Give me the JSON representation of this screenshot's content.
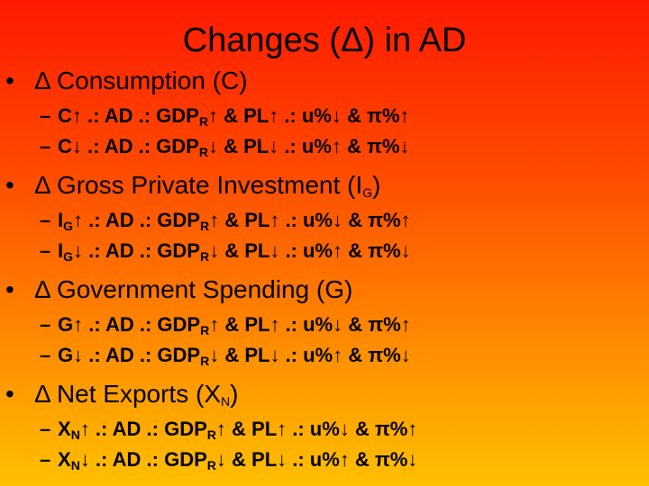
{
  "slide": {
    "title": "Changes (Δ) in AD",
    "bullet_marker": "•",
    "sub_marker": "–",
    "sections": [
      {
        "heading_main": "Δ Consumption (C)",
        "heading_sub": "",
        "heading_after": "",
        "lines": [
          {
            "a": "C",
            "a_sub": "",
            "b": "↑ .: AD  .: GDP",
            "r": "R",
            "c": "↑ & PL↑ .: u%↓ & π%↑"
          },
          {
            "a": "C",
            "a_sub": "",
            "b": "↓ .: AD  .: GDP",
            "r": "R",
            "c": "↓ & PL↓ .: u%↑ & π%↓"
          }
        ]
      },
      {
        "heading_main": "Δ Gross Private Investment (I",
        "heading_sub": "G",
        "heading_after": ")",
        "lines": [
          {
            "a": "I",
            "a_sub": "G",
            "b": "↑ .: AD  .: GDP",
            "r": "R",
            "c": "↑ & PL↑ .: u%↓ & π%↑"
          },
          {
            "a": "I",
            "a_sub": "G",
            "b": "↓ .: AD  .: GDP",
            "r": "R",
            "c": "↓ & PL↓ .: u%↑ & π%↓"
          }
        ]
      },
      {
        "heading_main": "Δ Government Spending (G)",
        "heading_sub": "",
        "heading_after": "",
        "lines": [
          {
            "a": "G",
            "a_sub": "",
            "b": "↑ .: AD  .: GDP",
            "r": "R",
            "c": "↑ & PL↑ .: u%↓ & π%↑"
          },
          {
            "a": "G",
            "a_sub": "",
            "b": "↓ .: AD  .: GDP",
            "r": "R",
            "c": "↓ & PL↓ .: u%↑ & π%↓"
          }
        ]
      },
      {
        "heading_main": "Δ Net Exports (X",
        "heading_sub": "N",
        "heading_after": ")",
        "lines": [
          {
            "a": "X",
            "a_sub": "N",
            "b": "↑ .: AD  .: GDP",
            "r": "R",
            "c": "↑ & PL↑ .: u%↓ & π%↑"
          },
          {
            "a": "X",
            "a_sub": "N",
            "b": "↓ .: AD  .: GDP",
            "r": "R",
            "c": "↓ & PL↓ .: u%↑ & π%↓"
          }
        ]
      }
    ]
  }
}
